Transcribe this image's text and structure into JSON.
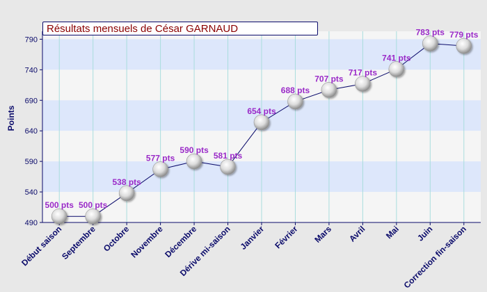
{
  "chart_data": {
    "type": "line",
    "title": "Résultats mensuels de  César GARNAUD",
    "ylabel": "Points",
    "xlabel": "",
    "categories": [
      "Début saison",
      "Septembre",
      "Octobre",
      "Novembre",
      "Décembre",
      "Dérive mi-saison",
      "Janvier",
      "Février",
      "Mars",
      "Avril",
      "Mai",
      "Juin",
      "Correction fin-saison"
    ],
    "values": [
      500,
      500,
      538,
      577,
      590,
      581,
      654,
      688,
      707,
      717,
      741,
      783,
      779
    ],
    "point_labels": [
      "500 pts",
      "500 pts",
      "538 pts",
      "577 pts",
      "590 pts",
      "581 pts",
      "654 pts",
      "688 pts",
      "707 pts",
      "717 pts",
      "741 pts",
      "783 pts",
      "779 pts"
    ],
    "yticks": [
      490,
      540,
      590,
      640,
      690,
      740,
      790
    ],
    "ylim": [
      490,
      803
    ],
    "grid": true,
    "legend": "none"
  },
  "colors": {
    "band_blue": "#dde7fb",
    "band_white": "#f5f5f5",
    "grid_vertical": "#a9dddd",
    "line": "#0a0a6a",
    "point_label": "#9a2ac8",
    "axis_text": "#0a0a6a",
    "title_text": "#8a0000"
  }
}
